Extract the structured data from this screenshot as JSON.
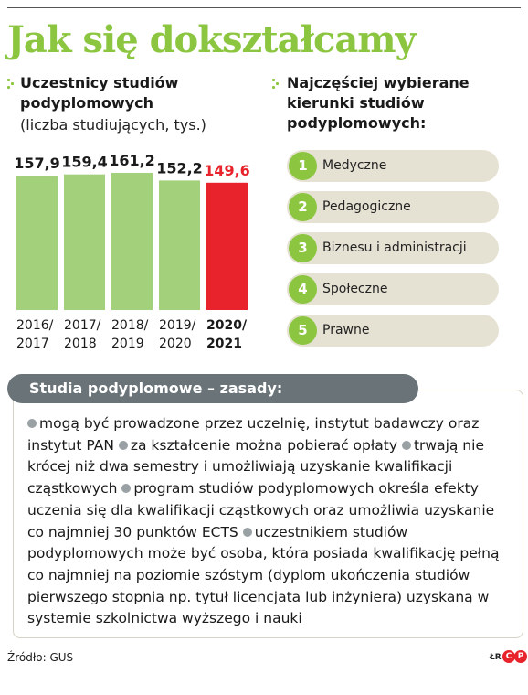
{
  "page": {
    "title": "Jak się dokształcamy",
    "source": "Źródło: GUS",
    "signature": {
      "initials": "ŁR",
      "logo_letters": [
        "C",
        "P"
      ]
    }
  },
  "left_section": {
    "title_lines": [
      "Uczestnicy studiów",
      "podyplomowych"
    ],
    "subtitle": "(liczba studiujących, tys.)"
  },
  "chart_data": {
    "type": "bar",
    "categories": [
      [
        "2016/",
        "2017"
      ],
      [
        "2017/",
        "2018"
      ],
      [
        "2018/",
        "2019"
      ],
      [
        "2019/",
        "2020"
      ],
      [
        "2020/",
        "2021"
      ]
    ],
    "values": [
      157.9,
      159.4,
      161.2,
      152.2,
      149.6
    ],
    "value_labels": [
      "157,9",
      "159,4",
      "161,2",
      "152,2",
      "149,6"
    ],
    "highlight_index": 4,
    "colors": {
      "bar": "#a3d07a",
      "highlight": "#e8232b",
      "label": "#1a1a1a"
    },
    "ylim": [
      0,
      165
    ],
    "grid": false
  },
  "right_section": {
    "title_lines": [
      "Najczęściej wybierane",
      "kierunki studiów",
      "podyplomowych:"
    ],
    "items": [
      {
        "number": "1",
        "label": "Medyczne"
      },
      {
        "number": "2",
        "label": "Pedagogiczne"
      },
      {
        "number": "3",
        "label": "Biznesu i administracji"
      },
      {
        "number": "4",
        "label": "Społeczne"
      },
      {
        "number": "5",
        "label": "Prawne"
      }
    ]
  },
  "rules": {
    "heading": "Studia podyplomowe – zasady:",
    "items": [
      "mogą być prowadzone przez uczelnię, instytut badawczy oraz instytut PAN",
      "za kształcenie można pobierać opłaty",
      "trwają nie krócej niż dwa semestry i umożliwiają uzyskanie kwalifikacji cząstkowych",
      "program studiów podyplomowych określa efekty uczenia się dla kwalifikacji cząstkowych oraz umożliwia uzyskanie co najmniej 30 punktów ECTS",
      "uczestnikiem studiów podyplomowych może być osoba, która posiada kwalifikację pełną co najmniej na poziomie szóstym (dyplom ukończenia studiów pierwszego stopnia np. tytuł licencjata lub inżyniera) uzyskaną w systemie szkolnictwa wyższego i nauki"
    ]
  },
  "colors": {
    "accent_green": "#8cc640",
    "pill_bg": "#e6e2d3",
    "rules_header_bg": "#6a7478",
    "highlight_red": "#e8232b"
  }
}
